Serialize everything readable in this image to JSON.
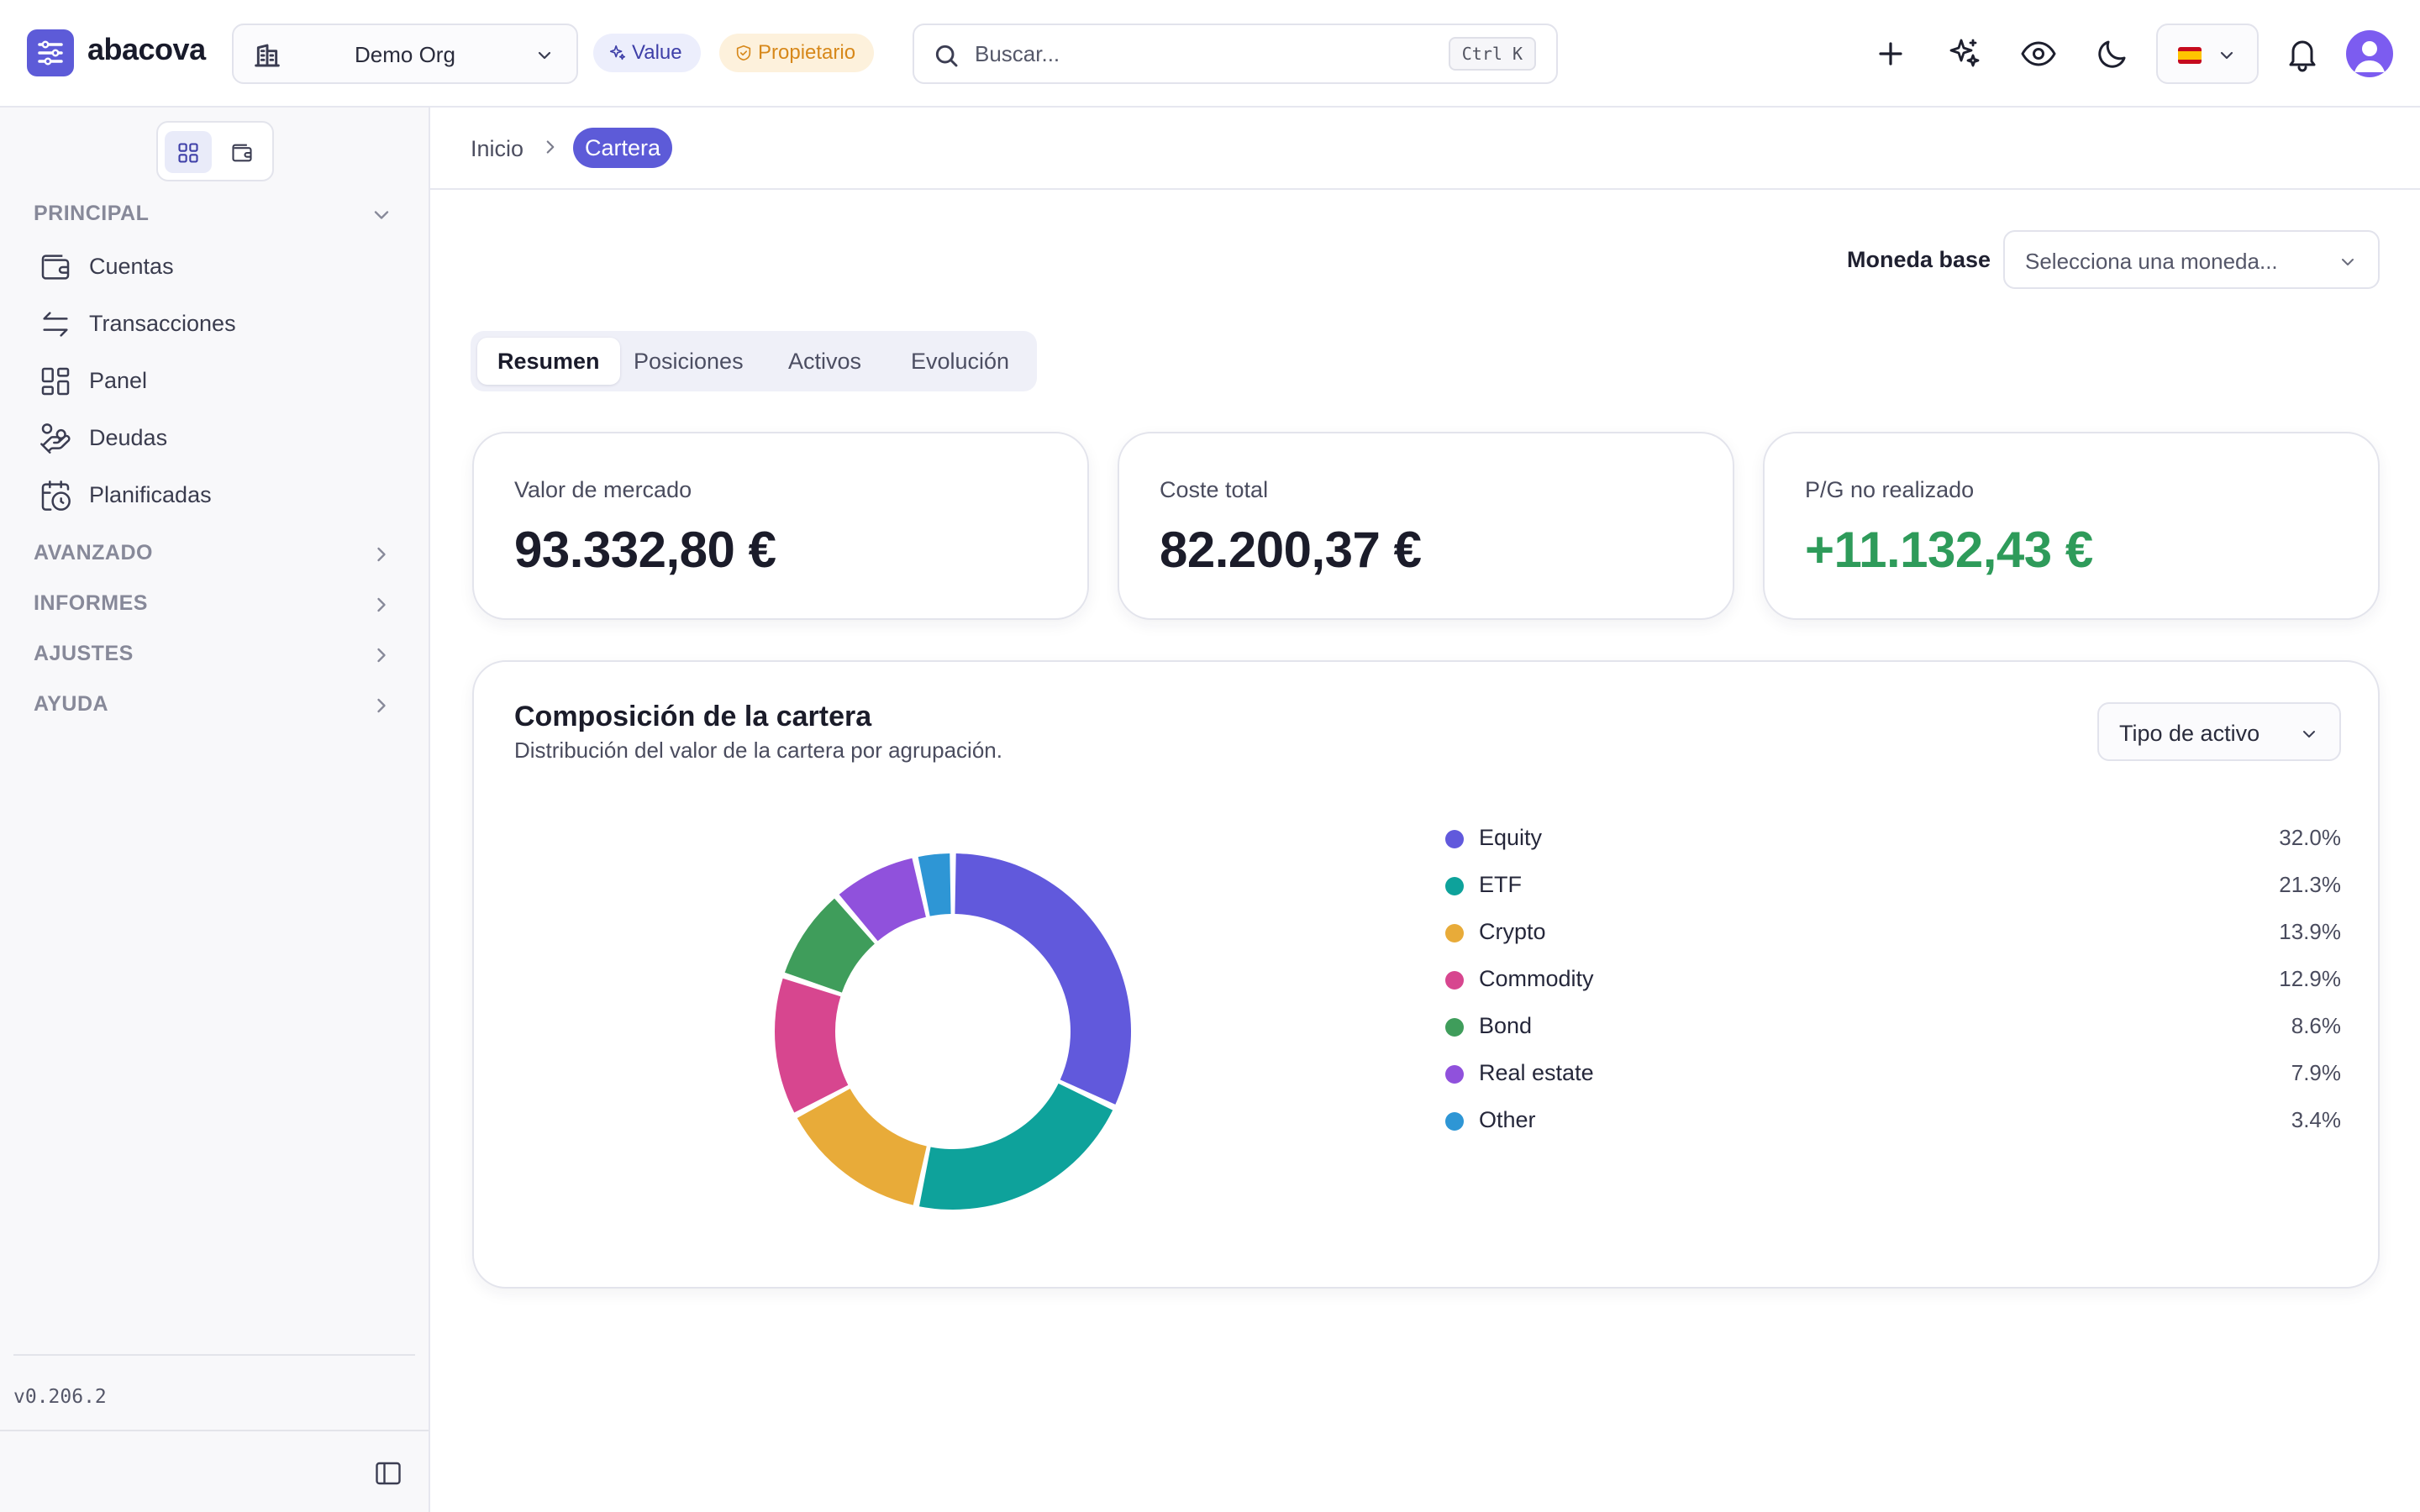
{
  "header": {
    "brand": "abacova",
    "org_name": "Demo Org",
    "badge_value": "Value",
    "badge_owner": "Propietario",
    "search_placeholder": "Buscar...",
    "search_shortcut": "Ctrl K",
    "language_flag": "es"
  },
  "sidebar": {
    "sections": [
      {
        "label": "PRINCIPAL",
        "expanded": true,
        "items": [
          {
            "label": "Cuentas",
            "icon": "wallet-icon"
          },
          {
            "label": "Transacciones",
            "icon": "arrows-swap-icon"
          },
          {
            "label": "Panel",
            "icon": "dashboard-icon"
          },
          {
            "label": "Deudas",
            "icon": "hand-coins-icon"
          },
          {
            "label": "Planificadas",
            "icon": "calendar-clock-icon"
          }
        ]
      },
      {
        "label": "AVANZADO",
        "expanded": false
      },
      {
        "label": "INFORMES",
        "expanded": false
      },
      {
        "label": "AJUSTES",
        "expanded": false
      },
      {
        "label": "AYUDA",
        "expanded": false
      }
    ],
    "version": "v0.206.2"
  },
  "breadcrumb": {
    "home": "Inicio",
    "current": "Cartera"
  },
  "currency": {
    "label": "Moneda base",
    "placeholder": "Selecciona una moneda..."
  },
  "tabs": [
    {
      "label": "Resumen",
      "active": true
    },
    {
      "label": "Posiciones",
      "active": false
    },
    {
      "label": "Activos",
      "active": false
    },
    {
      "label": "Evolución",
      "active": false
    }
  ],
  "stats": [
    {
      "label": "Valor de mercado",
      "value": "93.332,80 €"
    },
    {
      "label": "Coste total",
      "value": "82.200,37 €"
    },
    {
      "label": "P/G no realizado",
      "value": "+11.132,43 €"
    }
  ],
  "composition": {
    "title": "Composición de la cartera",
    "subtitle": "Distribución del valor de la cartera por agrupación.",
    "group_by": "Tipo de activo"
  },
  "chart_data": {
    "type": "pie",
    "categories": [
      "Equity",
      "ETF",
      "Crypto",
      "Commodity",
      "Bond",
      "Real estate",
      "Other"
    ],
    "values": [
      32.0,
      21.3,
      13.9,
      12.9,
      8.6,
      7.9,
      3.4
    ],
    "labels": [
      "32.0%",
      "21.3%",
      "13.9%",
      "12.9%",
      "8.6%",
      "7.9%",
      "3.4%"
    ],
    "colors": [
      "#6159dc",
      "#0ea29b",
      "#e8ab39",
      "#d7468f",
      "#3f9d5b",
      "#9051dc",
      "#2e96d5"
    ],
    "unit": "%",
    "legend_position": "right"
  },
  "colors": {
    "accent": "#5d5bd8",
    "positive": "#2e9b5a"
  }
}
